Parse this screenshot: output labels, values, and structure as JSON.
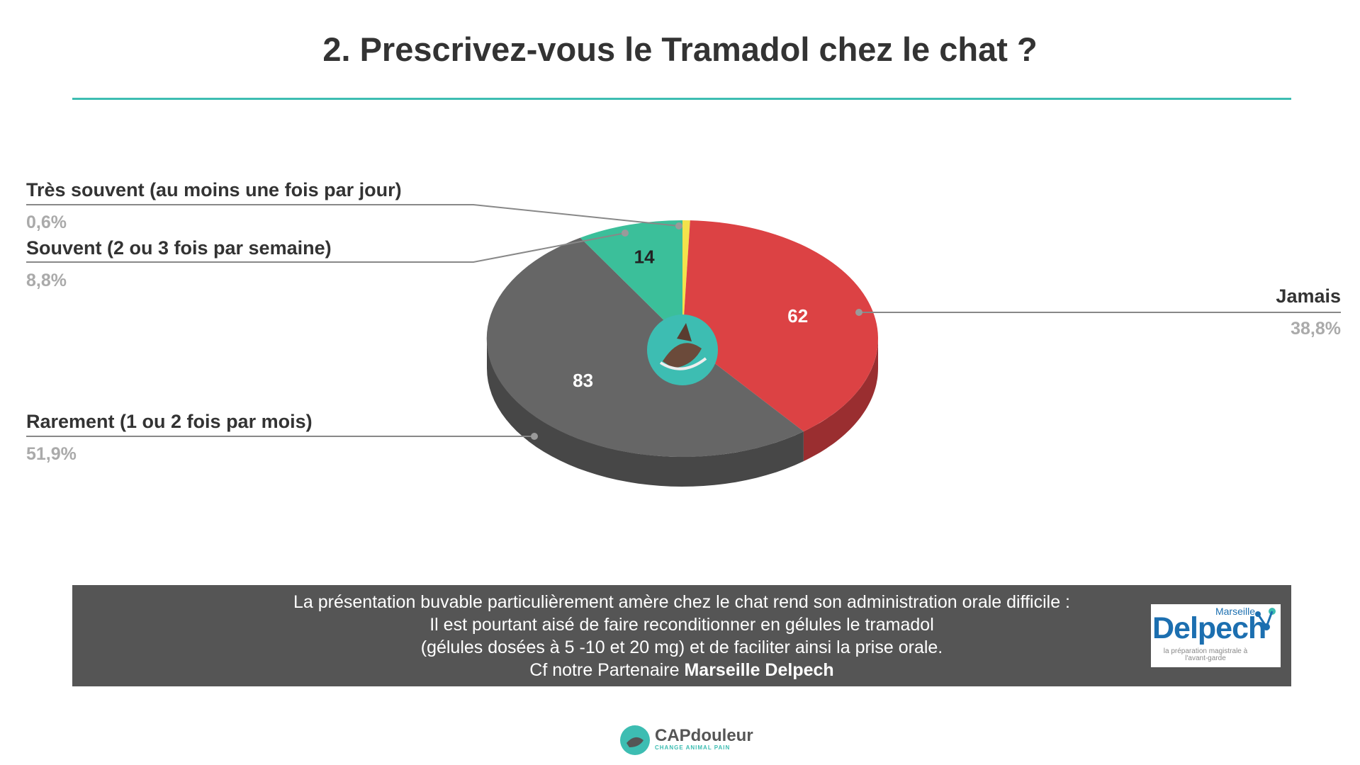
{
  "title": "2. Prescrivez-vous le Tramadol chez le chat ?",
  "chart_data": {
    "type": "pie",
    "title": "2. Prescrivez-vous le Tramadol chez le chat ?",
    "slices": [
      {
        "label": "Très souvent (au moins une fois par jour)",
        "value": 1,
        "percent": "0,6%",
        "color": "#f3e24b",
        "show_value": false
      },
      {
        "label": "Jamais",
        "value": 62,
        "percent": "38,8%",
        "color": "#dc4244",
        "show_value": true
      },
      {
        "label": "Rarement (1 ou 2 fois par mois)",
        "value": 83,
        "percent": "51,9%",
        "color": "#666666",
        "show_value": true
      },
      {
        "label": "Souvent (2 ou 3 fois par semaine)",
        "value": 14,
        "percent": "8,8%",
        "color": "#3bbf9a",
        "show_value": true
      }
    ],
    "style": "3d",
    "legend": "callout labels"
  },
  "colors": {
    "accent": "#3dbdb2",
    "title": "#333333",
    "note_bg": "#555555",
    "partner_blue": "#1c6fb0"
  },
  "note": {
    "line1": "La présentation buvable particulièrement amère chez le chat rend son administration orale difficile :",
    "line2": "Il est pourtant aisé de faire reconditionner en gélules le tramadol",
    "line3": "(gélules dosées à 5 -10 et 20 mg) et de faciliter ainsi la prise orale.",
    "line4_prefix": "Cf notre Partenaire ",
    "line4_bold": "Marseille Delpech"
  },
  "partner_logo": {
    "city": "Marseille",
    "name": "Delpech",
    "tagline": "la préparation magistrale à l'avant-garde"
  },
  "brand": {
    "name": "CAPdouleur",
    "tagline": "CHANGE ANIMAL PAIN"
  }
}
